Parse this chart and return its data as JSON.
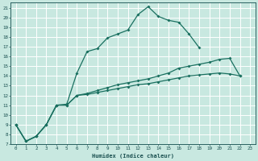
{
  "xlabel": "Humidex (Indice chaleur)",
  "bg_color": "#c8e8e0",
  "grid_color": "#ffffff",
  "line_color": "#1a7060",
  "spine_color": "#2a6060",
  "tick_color": "#1a5050",
  "xlim": [
    -0.5,
    23.5
  ],
  "ylim": [
    7,
    21.5
  ],
  "xticks": [
    0,
    1,
    2,
    3,
    4,
    5,
    6,
    7,
    8,
    9,
    10,
    11,
    12,
    13,
    14,
    15,
    16,
    17,
    18,
    19,
    20,
    21,
    22,
    23
  ],
  "yticks": [
    7,
    8,
    9,
    10,
    11,
    12,
    13,
    14,
    15,
    16,
    17,
    18,
    19,
    20,
    21
  ],
  "line1_x": [
    0,
    1,
    2,
    3,
    4,
    5,
    6,
    7,
    8,
    9,
    10,
    11,
    12,
    13,
    14,
    15,
    16,
    17,
    18
  ],
  "line1_y": [
    9.0,
    7.3,
    7.8,
    9.0,
    11.0,
    11.1,
    14.3,
    16.5,
    16.8,
    17.9,
    18.3,
    18.7,
    20.3,
    21.1,
    20.1,
    19.7,
    19.5,
    18.3,
    16.9
  ],
  "line2_x": [
    0,
    1,
    2,
    3,
    4,
    5,
    6,
    7,
    8,
    9,
    10,
    11,
    12,
    13,
    14,
    15,
    16,
    17,
    18,
    19,
    20,
    21,
    22
  ],
  "line2_y": [
    9.0,
    7.3,
    7.8,
    9.0,
    11.0,
    11.0,
    12.0,
    12.2,
    12.5,
    12.8,
    13.1,
    13.3,
    13.5,
    13.7,
    14.0,
    14.3,
    14.8,
    15.0,
    15.2,
    15.4,
    15.7,
    15.8,
    14.0
  ],
  "line3_x": [
    0,
    1,
    2,
    3,
    4,
    5,
    6,
    7,
    8,
    9,
    10,
    11,
    12,
    13,
    14,
    15,
    16,
    17,
    18,
    19,
    20,
    21,
    22
  ],
  "line3_y": [
    9.0,
    7.3,
    7.8,
    9.0,
    11.0,
    11.0,
    12.0,
    12.1,
    12.3,
    12.5,
    12.7,
    12.9,
    13.1,
    13.2,
    13.4,
    13.6,
    13.8,
    14.0,
    14.1,
    14.2,
    14.3,
    14.2,
    14.0
  ]
}
